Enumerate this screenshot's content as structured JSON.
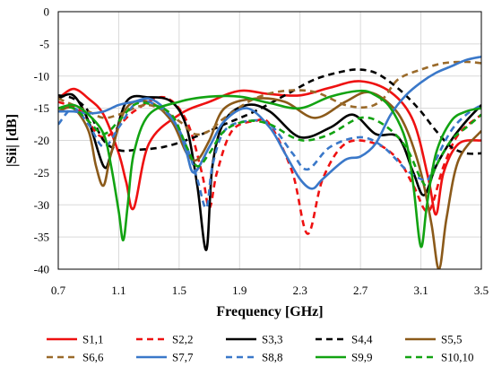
{
  "chart_data": {
    "type": "line",
    "xlabel": "Frequency [GHz]",
    "ylabel": "|Sii| [dB]",
    "xlim": [
      0.7,
      3.5
    ],
    "ylim": [
      -40,
      0
    ],
    "xticks": [
      "0.7",
      "1.1",
      "1.5",
      "1.9",
      "2.3",
      "2.7",
      "3.1",
      "3.5"
    ],
    "yticks": [
      "0",
      "-5",
      "-10",
      "-15",
      "-20",
      "-25",
      "-30",
      "-35",
      "-40"
    ],
    "grid": true,
    "legend_position": "bottom",
    "series": [
      {
        "name": "S1,1",
        "color": "#ee1111",
        "dash": "solid",
        "x": [
          0.7,
          0.8,
          0.9,
          1.0,
          1.1,
          1.15,
          1.2,
          1.3,
          1.5,
          1.7,
          1.9,
          2.1,
          2.3,
          2.5,
          2.7,
          2.9,
          3.05,
          3.15,
          3.2,
          3.25,
          3.35,
          3.5
        ],
        "y": [
          -13.5,
          -12,
          -13.5,
          -16,
          -22,
          -26.5,
          -30.5,
          -20.5,
          -16,
          -14,
          -12.3,
          -12.8,
          -13,
          -11.8,
          -10.8,
          -12.5,
          -17,
          -26,
          -31.5,
          -25,
          -20.5,
          -20
        ]
      },
      {
        "name": "S2,2",
        "color": "#ee1111",
        "dash": "dashed",
        "x": [
          0.7,
          0.85,
          1.0,
          1.2,
          1.4,
          1.55,
          1.65,
          1.7,
          1.75,
          1.85,
          2.0,
          2.1,
          2.25,
          2.35,
          2.45,
          2.6,
          2.8,
          2.95,
          3.05,
          3.15,
          3.25,
          3.35,
          3.5
        ],
        "y": [
          -14,
          -15.5,
          -19.5,
          -15.5,
          -13.3,
          -17,
          -25,
          -30.5,
          -25,
          -18.5,
          -17,
          -17.5,
          -25,
          -34.5,
          -26,
          -20.5,
          -20.5,
          -23,
          -27,
          -31,
          -24,
          -19,
          -16
        ]
      },
      {
        "name": "S3,3",
        "color": "#000000",
        "dash": "solid",
        "x": [
          0.7,
          0.8,
          0.9,
          1.0,
          1.05,
          1.15,
          1.3,
          1.45,
          1.55,
          1.62,
          1.68,
          1.72,
          1.8,
          1.95,
          2.1,
          2.3,
          2.5,
          2.65,
          2.8,
          2.95,
          3.05,
          3.12,
          3.2,
          3.3,
          3.4,
          3.5
        ],
        "y": [
          -13.5,
          -13,
          -17,
          -24,
          -22,
          -14,
          -13.3,
          -14,
          -18,
          -27,
          -37,
          -24,
          -17,
          -14.5,
          -15.5,
          -19.5,
          -18,
          -16,
          -19,
          -19.5,
          -25,
          -28.5,
          -24,
          -20,
          -17,
          -14.5
        ]
      },
      {
        "name": "S4,4",
        "color": "#000000",
        "dash": "dashed",
        "x": [
          0.7,
          0.8,
          0.9,
          1.0,
          1.1,
          1.2,
          1.4,
          1.6,
          1.8,
          2.0,
          2.2,
          2.4,
          2.6,
          2.7,
          2.8,
          2.9,
          3.0,
          3.1,
          3.2,
          3.3,
          3.4,
          3.5
        ],
        "y": [
          -13,
          -13.5,
          -15.5,
          -20,
          -21.5,
          -21.5,
          -21,
          -19.5,
          -17.5,
          -15.5,
          -13,
          -10.5,
          -9.2,
          -9.0,
          -9.5,
          -11,
          -13,
          -15.5,
          -18.5,
          -21,
          -22,
          -22
        ]
      },
      {
        "name": "S5,5",
        "color": "#8b5a1a",
        "dash": "solid",
        "x": [
          0.7,
          0.8,
          0.9,
          0.95,
          1.0,
          1.05,
          1.15,
          1.3,
          1.45,
          1.55,
          1.62,
          1.7,
          1.8,
          2.0,
          2.2,
          2.4,
          2.6,
          2.75,
          2.9,
          3.0,
          3.1,
          3.17,
          3.22,
          3.27,
          3.35,
          3.5
        ],
        "y": [
          -15.5,
          -15,
          -18.5,
          -24,
          -27,
          -22,
          -15,
          -14,
          -17,
          -22,
          -23,
          -20,
          -15,
          -13.5,
          -14,
          -16.5,
          -14,
          -12.5,
          -14.5,
          -18,
          -25,
          -33,
          -40,
          -32,
          -23,
          -18.5
        ]
      },
      {
        "name": "S6,6",
        "color": "#9a6a2a",
        "dash": "dashed",
        "x": [
          0.7,
          0.8,
          0.9,
          1.0,
          1.1,
          1.3,
          1.5,
          1.6,
          1.7,
          1.8,
          2.0,
          2.2,
          2.4,
          2.6,
          2.75,
          2.85,
          2.95,
          3.1,
          3.25,
          3.4,
          3.5
        ],
        "y": [
          -13.5,
          -14.5,
          -15.5,
          -16.5,
          -16,
          -14.5,
          -17,
          -19,
          -18.5,
          -16.5,
          -13.5,
          -12.3,
          -12.5,
          -14.5,
          -14.8,
          -13.5,
          -10.5,
          -9.0,
          -8.0,
          -7.8,
          -8.0
        ]
      },
      {
        "name": "S7,7",
        "color": "#3a78c9",
        "dash": "solid",
        "x": [
          0.7,
          0.8,
          0.9,
          1.0,
          1.1,
          1.2,
          1.3,
          1.4,
          1.5,
          1.55,
          1.6,
          1.7,
          1.8,
          1.95,
          2.1,
          2.2,
          2.3,
          2.38,
          2.45,
          2.6,
          2.7,
          2.8,
          2.9,
          3.0,
          3.1,
          3.2,
          3.3,
          3.4,
          3.5
        ],
        "y": [
          -15.5,
          -15.5,
          -15.8,
          -15.5,
          -14.5,
          -14,
          -13.5,
          -15,
          -18.5,
          -22,
          -25,
          -21,
          -17,
          -15,
          -18,
          -22,
          -26,
          -27.5,
          -26,
          -23,
          -22.5,
          -20.5,
          -16,
          -13,
          -11,
          -9.5,
          -8.5,
          -7.5,
          -7.0
        ]
      },
      {
        "name": "S8,8",
        "color": "#3a78c9",
        "dash": "dashed",
        "x": [
          0.7,
          0.8,
          0.9,
          1.0,
          1.1,
          1.2,
          1.3,
          1.45,
          1.55,
          1.62,
          1.68,
          1.72,
          1.8,
          1.95,
          2.1,
          2.25,
          2.35,
          2.5,
          2.7,
          2.85,
          3.0,
          3.1,
          3.15,
          3.2,
          3.3,
          3.4,
          3.5
        ],
        "y": [
          -17.5,
          -15,
          -17.5,
          -21,
          -18,
          -14.5,
          -14,
          -16.5,
          -21,
          -26,
          -30.5,
          -24,
          -18.5,
          -17,
          -17.5,
          -22,
          -24.5,
          -21,
          -19.5,
          -21,
          -24.5,
          -26,
          -26,
          -23,
          -18.5,
          -16,
          -14.5
        ]
      },
      {
        "name": "S9,9",
        "color": "#12a312",
        "dash": "solid",
        "x": [
          0.7,
          0.8,
          0.9,
          1.0,
          1.05,
          1.1,
          1.13,
          1.16,
          1.2,
          1.3,
          1.5,
          1.7,
          1.9,
          2.1,
          2.3,
          2.5,
          2.7,
          2.8,
          2.9,
          3.0,
          3.05,
          3.1,
          3.14,
          3.2,
          3.3,
          3.4,
          3.5
        ],
        "y": [
          -15,
          -14.5,
          -16,
          -19,
          -24,
          -31,
          -35.5,
          -30,
          -22,
          -16,
          -14,
          -13.2,
          -13.2,
          -14.2,
          -15,
          -13.2,
          -12.3,
          -13,
          -15,
          -20,
          -27,
          -36.5,
          -30,
          -22,
          -17,
          -15.5,
          -15
        ]
      },
      {
        "name": "S10,10",
        "color": "#12a312",
        "dash": "dashed",
        "x": [
          0.7,
          0.8,
          0.9,
          1.0,
          1.1,
          1.2,
          1.3,
          1.45,
          1.55,
          1.62,
          1.7,
          1.8,
          1.95,
          2.1,
          2.25,
          2.35,
          2.5,
          2.7,
          2.85,
          3.0,
          3.1,
          3.15,
          3.2,
          3.3,
          3.4,
          3.5
        ],
        "y": [
          -15,
          -15,
          -17,
          -19,
          -17,
          -14.5,
          -14.3,
          -16,
          -21,
          -24,
          -22,
          -18.5,
          -17,
          -17.5,
          -19.5,
          -20,
          -19,
          -16.5,
          -17.5,
          -21,
          -26,
          -27,
          -24,
          -20,
          -18,
          -16
        ]
      }
    ]
  }
}
